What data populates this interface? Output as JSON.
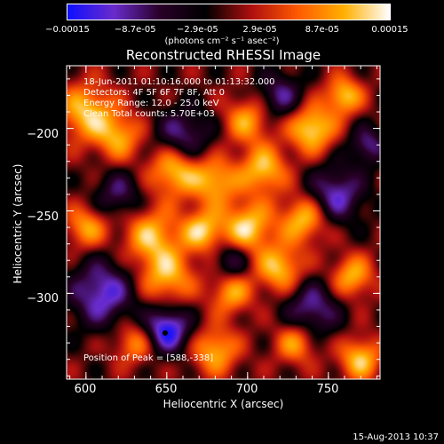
{
  "chart_data": {
    "type": "heatmap",
    "title": "Reconstructed RHESSI Image",
    "xlabel": "Heliocentric X (arcsec)",
    "ylabel": "Heliocentric Y (arcsec)",
    "xlim": [
      588,
      782
    ],
    "ylim": [
      -352,
      -162
    ],
    "x_ticks": [
      600,
      650,
      700,
      750
    ],
    "y_ticks": [
      -200,
      -250,
      -300
    ],
    "colorbar": {
      "min": -0.00015,
      "max": 0.00015,
      "ticks": [
        -0.00015,
        -8.7e-05,
        -2.9e-05,
        2.9e-05,
        8.7e-05,
        0.00015
      ],
      "tick_labels": [
        "-0.00015",
        "-8.7e-05",
        "-2.9e-05",
        "2.9e-05",
        "8.7e-05",
        "0.00015"
      ],
      "units_label": "(photons cm⁻² s⁻¹ asec⁻²)",
      "colormap": [
        "#1010ff",
        "#6a2ccc",
        "#2a0028",
        "#000000",
        "#b01010",
        "#ff5a00",
        "#ffb000",
        "#ffffff"
      ]
    },
    "annotations": [
      "18-Jun-2011 01:10:16.000 to 01:13:32.000",
      "Detectors: 4F 5F 6F 7F 8F, Att 0",
      "Energy Range: 12.0 - 25.0 keV",
      "Clean     Total counts: 5.70E+03"
    ],
    "peak_label": "Position of Peak = [588,-338]",
    "marker": {
      "x": 649,
      "y": -324
    },
    "blobs": [
      {
        "x": 600,
        "y": -190,
        "r": 12,
        "v": 0.00012
      },
      {
        "x": 620,
        "y": -205,
        "r": 10,
        "v": 0.0001
      },
      {
        "x": 655,
        "y": -225,
        "r": 11,
        "v": 0.00013
      },
      {
        "x": 680,
        "y": -232,
        "r": 10,
        "v": 0.00011
      },
      {
        "x": 710,
        "y": -225,
        "r": 10,
        "v": 0.00012
      },
      {
        "x": 740,
        "y": -200,
        "r": 10,
        "v": 0.00014
      },
      {
        "x": 760,
        "y": -180,
        "r": 8,
        "v": 0.00012
      },
      {
        "x": 600,
        "y": -260,
        "r": 9,
        "v": 0.0001
      },
      {
        "x": 640,
        "y": -265,
        "r": 12,
        "v": 0.00011
      },
      {
        "x": 672,
        "y": -262,
        "r": 9,
        "v": 0.00012
      },
      {
        "x": 700,
        "y": -260,
        "r": 11,
        "v": 0.00013
      },
      {
        "x": 735,
        "y": -255,
        "r": 10,
        "v": 0.00012
      },
      {
        "x": 720,
        "y": -285,
        "r": 10,
        "v": 0.00012
      },
      {
        "x": 650,
        "y": -290,
        "r": 12,
        "v": 0.00011
      },
      {
        "x": 690,
        "y": -300,
        "r": 9,
        "v": 0.0001
      },
      {
        "x": 765,
        "y": -290,
        "r": 9,
        "v": 0.00011
      },
      {
        "x": 770,
        "y": -340,
        "r": 9,
        "v": 0.00012
      },
      {
        "x": 730,
        "y": -330,
        "r": 9,
        "v": 0.0001
      },
      {
        "x": 680,
        "y": -335,
        "r": 10,
        "v": 0.00011
      },
      {
        "x": 630,
        "y": -330,
        "r": 9,
        "v": 9e-05
      },
      {
        "x": 700,
        "y": -195,
        "r": 10,
        "v": 0.0001
      },
      {
        "x": 620,
        "y": -240,
        "r": 10,
        "v": -8e-05
      },
      {
        "x": 660,
        "y": -205,
        "r": 12,
        "v": -0.0001
      },
      {
        "x": 720,
        "y": -180,
        "r": 10,
        "v": -9e-05
      },
      {
        "x": 610,
        "y": -300,
        "r": 14,
        "v": -0.00012
      },
      {
        "x": 650,
        "y": -322,
        "r": 10,
        "v": -0.00015
      },
      {
        "x": 755,
        "y": -240,
        "r": 12,
        "v": -0.00011
      },
      {
        "x": 740,
        "y": -310,
        "r": 12,
        "v": -0.0001
      },
      {
        "x": 690,
        "y": -280,
        "r": 8,
        "v": -8e-05
      },
      {
        "x": 775,
        "y": -210,
        "r": 8,
        "v": -9e-05
      }
    ]
  },
  "footer": {
    "date": "15-Aug-2013 10:37"
  }
}
